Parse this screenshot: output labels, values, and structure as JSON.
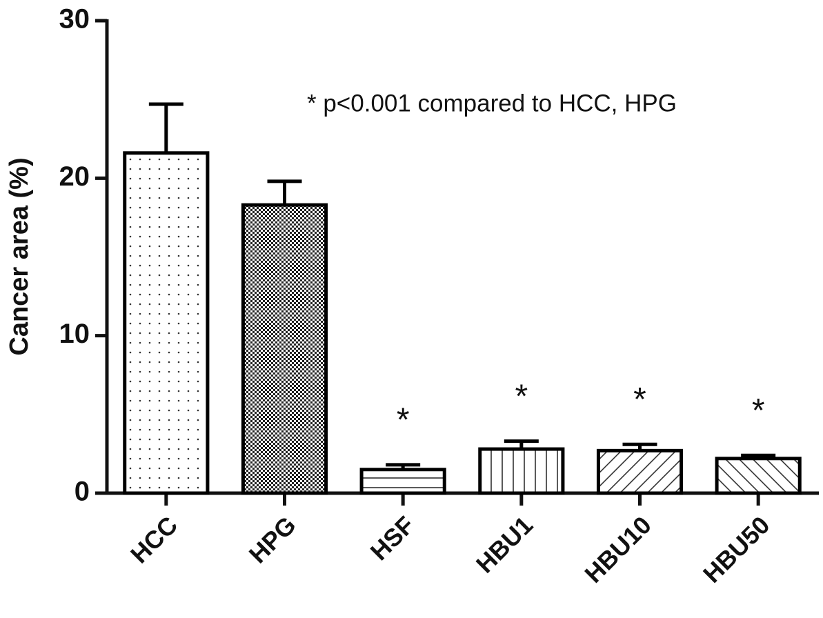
{
  "chart_data": {
    "type": "bar",
    "ylabel": "Cancer area (%)",
    "annotation": "* p<0.001 compared to HCC, HPG",
    "categories": [
      "HCC",
      "HPG",
      "HSF",
      "HBU1",
      "HBU10",
      "HBU50"
    ],
    "values": [
      21.6,
      18.3,
      1.5,
      2.8,
      2.7,
      2.2
    ],
    "errors": [
      3.1,
      1.5,
      0.3,
      0.5,
      0.4,
      0.2
    ],
    "value_annotations": [
      null,
      null,
      "*",
      "*",
      "*",
      "*"
    ],
    "patterns": [
      "dots",
      "checker",
      "horizontal",
      "vertical",
      "diagonal-up",
      "diagonal-down"
    ],
    "color": "#000000",
    "ylim": [
      0,
      30
    ],
    "yticks": [
      0,
      10,
      20,
      30
    ],
    "grid": false
  }
}
